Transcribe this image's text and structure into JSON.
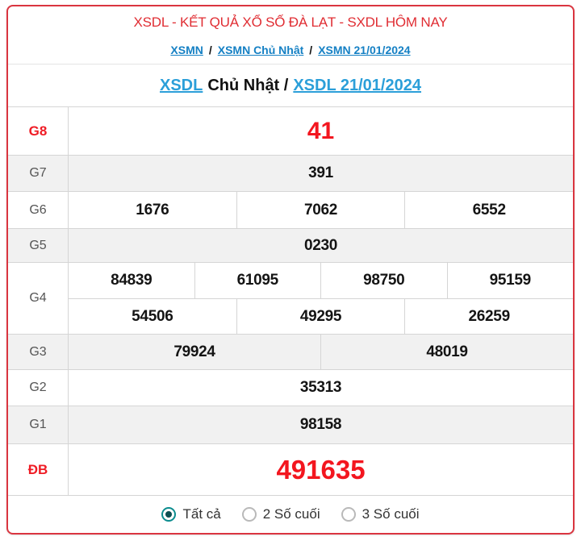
{
  "header": {
    "title": "XSDL - KẾT QUẢ XỔ SỐ ĐÀ LẠT - SXDL HÔM NAY",
    "breadcrumb": {
      "separator": "/",
      "links": [
        "XSMN",
        "XSMN Chủ Nhật",
        "XSMN 21/01/2024"
      ]
    },
    "heading": {
      "link1": "XSDL",
      "middle": "Chủ Nhật /",
      "link2": "XSDL 21/01/2024"
    }
  },
  "table": {
    "rows": [
      {
        "label": "G8",
        "cells": [
          "41"
        ]
      },
      {
        "label": "G7",
        "cells": [
          "391"
        ]
      },
      {
        "label": "G6",
        "cells": [
          "1676",
          "7062",
          "6552"
        ]
      },
      {
        "label": "G5",
        "cells": [
          "0230"
        ]
      },
      {
        "label": "G4",
        "sub": [
          [
            "84839",
            "61095",
            "98750",
            "95159"
          ],
          [
            "54506",
            "49295",
            "26259"
          ]
        ]
      },
      {
        "label": "G3",
        "cells": [
          "79924",
          "48019"
        ]
      },
      {
        "label": "G2",
        "cells": [
          "35313"
        ]
      },
      {
        "label": "G1",
        "cells": [
          "98158"
        ]
      },
      {
        "label": "ĐB",
        "cells": [
          "491635"
        ]
      }
    ]
  },
  "footer": {
    "options": [
      {
        "label": "Tất cả",
        "selected": true
      },
      {
        "label": "2 Số cuối",
        "selected": false
      },
      {
        "label": "3 Số cuối",
        "selected": false
      }
    ]
  },
  "colors": {
    "accent_red": "#e02d33",
    "value_red": "#f3161f",
    "link_blue": "#1580c4",
    "heading_blue": "#2b9fd9",
    "radio_teal": "#0b8c8e",
    "stripe_gray": "#f1f1f1",
    "border_gray": "#d5d5d5"
  }
}
